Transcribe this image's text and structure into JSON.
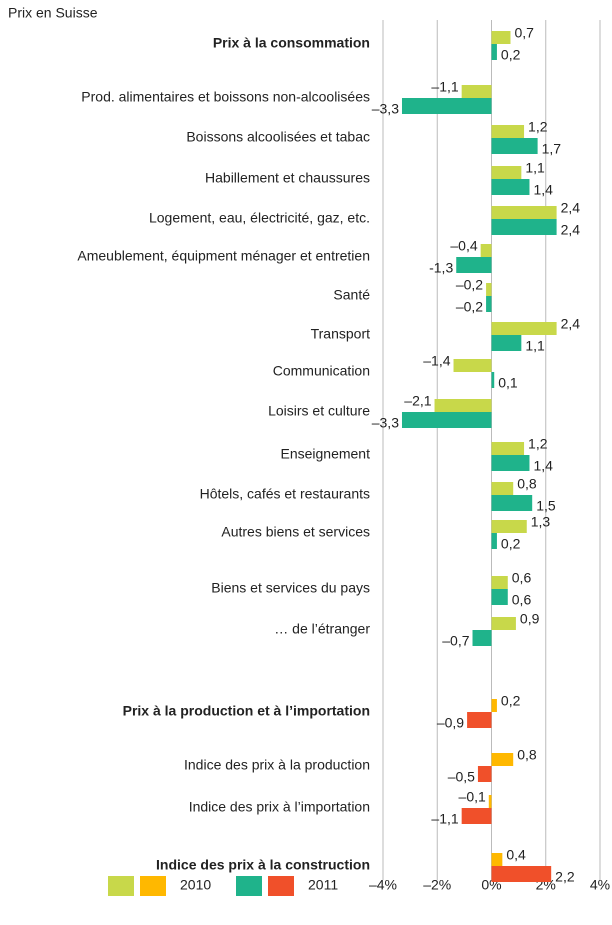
{
  "chart_data": {
    "type": "bar",
    "orientation": "horizontal",
    "title": "Prix en Suisse",
    "categories": [
      "Prix à la consommation",
      "Prod. alimentaires et boissons non-alcoolisées",
      "Boissons alcoolisées et tabac",
      "Habillement et chaussures",
      "Logement, eau, électricité, gaz, etc.",
      "Ameublement, équipment ménager et entretien",
      "Santé",
      "Transport",
      "Communication",
      "Loisirs et culture",
      "Enseignement",
      "Hôtels, cafés et restaurants",
      "Autres biens et services",
      "Biens et services du pays",
      "… de l’étranger",
      "Prix à la production et à l’importation",
      "Indice des prix à la production",
      "Indice des prix à l’importation",
      "Indice des prix à la construction"
    ],
    "bold_categories": [
      0,
      15,
      18
    ],
    "series": [
      {
        "name": "2010",
        "colors": [
          "#c8d84a",
          "#c8d84a",
          "#c8d84a",
          "#c8d84a",
          "#c8d84a",
          "#c8d84a",
          "#c8d84a",
          "#c8d84a",
          "#c8d84a",
          "#c8d84a",
          "#c8d84a",
          "#c8d84a",
          "#c8d84a",
          "#c8d84a",
          "#c8d84a",
          "#ffb800",
          "#ffb800",
          "#ffb800",
          "#ffb800"
        ],
        "values": [
          0.7,
          -1.1,
          1.2,
          1.1,
          2.4,
          -0.4,
          -0.2,
          2.4,
          -1.4,
          -2.1,
          1.2,
          0.8,
          1.3,
          0.6,
          0.9,
          0.2,
          0.8,
          -0.1,
          0.4
        ],
        "value_labels": [
          "0,7",
          "–1,1",
          "1,2",
          "1,1",
          "2,4",
          "–0,4",
          "–0,2",
          "2,4",
          "–1,4",
          "–2,1",
          "1,2",
          "0,8",
          "1,3",
          "0,6",
          "0,9",
          "0,2",
          "0,8",
          "–0,1",
          "0,4"
        ]
      },
      {
        "name": "2011",
        "colors": [
          "#1fb38b",
          "#1fb38b",
          "#1fb38b",
          "#1fb38b",
          "#1fb38b",
          "#1fb38b",
          "#1fb38b",
          "#1fb38b",
          "#1fb38b",
          "#1fb38b",
          "#1fb38b",
          "#1fb38b",
          "#1fb38b",
          "#1fb38b",
          "#1fb38b",
          "#f0502a",
          "#f0502a",
          "#f0502a",
          "#f0502a"
        ],
        "values": [
          0.2,
          -3.3,
          1.7,
          1.4,
          2.4,
          -1.3,
          -0.2,
          1.1,
          0.1,
          -3.3,
          1.4,
          1.5,
          0.2,
          0.6,
          -0.7,
          -0.9,
          -0.5,
          -1.1,
          2.2
        ],
        "value_labels": [
          "0,2",
          "–3,3",
          "1,7",
          "1,4",
          "2,4",
          "-1,3",
          "–0,2",
          "1,1",
          "0,1",
          "–3,3",
          "1,4",
          "1,5",
          "0,2",
          "0,6",
          "–0,7",
          "–0,9",
          "–0,5",
          "–1,1",
          "2,2"
        ]
      }
    ],
    "xlim": [
      -4,
      4
    ],
    "xticks": [
      {
        "value": -4,
        "label": "–4%"
      },
      {
        "value": -2,
        "label": "–2%"
      },
      {
        "value": 0,
        "label": "0%"
      },
      {
        "value": 2,
        "label": "2%"
      },
      {
        "value": 4,
        "label": "4%"
      }
    ],
    "grid": true
  }
}
